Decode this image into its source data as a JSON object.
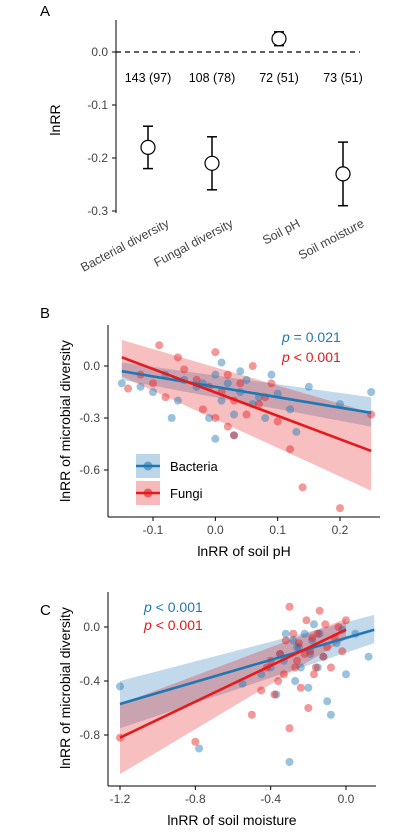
{
  "colors": {
    "bacteria": "#1f78b4",
    "fungi": "#e41a1c"
  },
  "chart_data": [
    {
      "panel": "A",
      "type": "scatter",
      "ylabel": "lnRR",
      "ylim": [
        -0.3,
        0.0
      ],
      "yticks": [
        "0.0",
        "-0.1",
        "-0.2",
        "-0.3"
      ],
      "categories": [
        "Bacterial diversity",
        "Fungal diversity",
        "Soil pH",
        "Soil moisture"
      ],
      "values": [
        -0.18,
        -0.21,
        0.025,
        -0.23
      ],
      "ci_low": [
        -0.22,
        -0.26,
        0.012,
        -0.29
      ],
      "ci_high": [
        -0.14,
        -0.16,
        0.038,
        -0.17
      ],
      "sample_labels": [
        "143 (97)",
        "108 (78)",
        "72 (51)",
        "73 (51)"
      ],
      "reference_line": 0.0
    },
    {
      "panel": "B",
      "type": "scatter",
      "xlabel": "lnRR of soil pH",
      "ylabel": "lnRR of microbial diversity",
      "xticks": [
        "-0.1",
        "0.0",
        "0.1",
        "0.2"
      ],
      "yticks": [
        "0.0",
        "-0.3",
        "-0.6"
      ],
      "legend": [
        "Bacteria",
        "Fungi"
      ],
      "stats": [
        {
          "p_symbol": "p",
          "p_text": " = 0.021"
        },
        {
          "p_symbol": "p",
          "p_text": " < 0.001"
        }
      ],
      "series": [
        {
          "name": "Bacteria",
          "fit": [
            [
              -0.15,
              -0.03
            ],
            [
              0.25,
              -0.27
            ]
          ],
          "band_low": [
            -0.08,
            -0.35
          ],
          "band_high": [
            0.02,
            -0.18
          ],
          "points": [
            [
              -0.15,
              -0.1
            ],
            [
              -0.12,
              -0.12
            ],
            [
              -0.1,
              -0.15
            ],
            [
              -0.08,
              -0.05
            ],
            [
              -0.06,
              -0.2
            ],
            [
              -0.05,
              -0.08
            ],
            [
              -0.03,
              -0.12
            ],
            [
              -0.01,
              -0.3
            ],
            [
              0.0,
              -0.05
            ],
            [
              0.0,
              -0.42
            ],
            [
              0.01,
              -0.2
            ],
            [
              0.02,
              -0.1
            ],
            [
              0.03,
              -0.28
            ],
            [
              0.03,
              -0.4
            ],
            [
              0.04,
              -0.15
            ],
            [
              0.05,
              -0.08
            ],
            [
              0.06,
              -0.22
            ],
            [
              0.07,
              -0.18
            ],
            [
              0.08,
              -0.3
            ],
            [
              0.1,
              -0.16
            ],
            [
              0.12,
              -0.25
            ],
            [
              0.13,
              -0.38
            ],
            [
              0.15,
              -0.12
            ],
            [
              0.2,
              -0.22
            ],
            [
              0.25,
              -0.15
            ],
            [
              -0.07,
              -0.3
            ],
            [
              -0.02,
              -0.1
            ],
            [
              0.01,
              0.02
            ],
            [
              0.04,
              -0.03
            ],
            [
              0.09,
              -0.05
            ]
          ]
        },
        {
          "name": "Fungi",
          "fit": [
            [
              -0.15,
              0.05
            ],
            [
              0.25,
              -0.49
            ]
          ],
          "band_low": [
            -0.06,
            -0.72
          ],
          "band_high": [
            0.15,
            -0.27
          ],
          "points": [
            [
              -0.14,
              -0.13
            ],
            [
              -0.12,
              -0.05
            ],
            [
              -0.1,
              -0.1
            ],
            [
              -0.08,
              -0.18
            ],
            [
              -0.06,
              0.05
            ],
            [
              -0.05,
              -0.02
            ],
            [
              -0.03,
              -0.08
            ],
            [
              -0.02,
              -0.25
            ],
            [
              -0.01,
              -0.12
            ],
            [
              0.0,
              0.08
            ],
            [
              0.0,
              -0.3
            ],
            [
              0.01,
              -0.15
            ],
            [
              0.02,
              -0.05
            ],
            [
              0.02,
              -0.35
            ],
            [
              0.03,
              -0.2
            ],
            [
              0.04,
              -0.1
            ],
            [
              0.05,
              -0.28
            ],
            [
              0.06,
              0.0
            ],
            [
              0.07,
              -0.22
            ],
            [
              0.08,
              -0.18
            ],
            [
              0.1,
              -0.32
            ],
            [
              0.12,
              -0.48
            ],
            [
              0.14,
              -0.7
            ],
            [
              0.2,
              -0.82
            ],
            [
              0.25,
              -0.28
            ],
            [
              -0.09,
              0.12
            ],
            [
              0.03,
              -0.4
            ],
            [
              0.09,
              -0.1
            ]
          ]
        }
      ]
    },
    {
      "panel": "C",
      "type": "scatter",
      "xlabel": "lnRR of soil moisture",
      "ylabel": "lnRR of microbial diversity",
      "xticks": [
        "-1.2",
        "-0.8",
        "-0.4",
        "0.0"
      ],
      "yticks": [
        "0.0",
        "-0.4",
        "-0.8"
      ],
      "stats": [
        {
          "p_symbol": "p",
          "p_text": " < 0.001"
        },
        {
          "p_symbol": "p",
          "p_text": " < 0.001"
        }
      ],
      "series": [
        {
          "name": "Bacteria",
          "fit": [
            [
              -1.2,
              -0.57
            ],
            [
              0.15,
              -0.02
            ]
          ],
          "band_low": [
            -0.75,
            -0.12
          ],
          "band_high": [
            -0.4,
            0.09
          ],
          "points": [
            [
              -1.2,
              -0.44
            ],
            [
              -0.78,
              -0.9
            ],
            [
              -0.55,
              -0.42
            ],
            [
              -0.45,
              -0.35
            ],
            [
              -0.4,
              -0.3
            ],
            [
              -0.37,
              -0.5
            ],
            [
              -0.35,
              -0.2
            ],
            [
              -0.33,
              -0.25
            ],
            [
              -0.3,
              -1.0
            ],
            [
              -0.28,
              -0.1
            ],
            [
              -0.27,
              -0.4
            ],
            [
              -0.25,
              -0.15
            ],
            [
              -0.24,
              -0.3
            ],
            [
              -0.22,
              -0.05
            ],
            [
              -0.2,
              -0.45
            ],
            [
              -0.19,
              -0.2
            ],
            [
              -0.18,
              -0.1
            ],
            [
              -0.15,
              -0.3
            ],
            [
              -0.14,
              -0.05
            ],
            [
              -0.12,
              -0.22
            ],
            [
              -0.1,
              -0.55
            ],
            [
              -0.08,
              -0.65
            ],
            [
              -0.05,
              -0.12
            ],
            [
              -0.02,
              -0.02
            ],
            [
              0.0,
              -0.35
            ],
            [
              0.05,
              -0.05
            ],
            [
              0.12,
              -0.22
            ],
            [
              -0.32,
              -0.05
            ],
            [
              -0.26,
              -0.15
            ],
            [
              -0.17,
              0.02
            ]
          ]
        },
        {
          "name": "Fungi",
          "fit": [
            [
              -1.2,
              -0.82
            ],
            [
              0.0,
              -0.02
            ]
          ],
          "band_low": [
            -1.09,
            -0.09
          ],
          "band_high": [
            -0.57,
            0.06
          ],
          "points": [
            [
              -1.2,
              -0.82
            ],
            [
              -0.8,
              -0.85
            ],
            [
              -0.45,
              -0.47
            ],
            [
              -0.42,
              -0.3
            ],
            [
              -0.4,
              -0.25
            ],
            [
              -0.38,
              -0.5
            ],
            [
              -0.35,
              -0.2
            ],
            [
              -0.33,
              -0.35
            ],
            [
              -0.32,
              -0.1
            ],
            [
              -0.3,
              -0.75
            ],
            [
              -0.3,
              0.15
            ],
            [
              -0.28,
              -0.05
            ],
            [
              -0.27,
              -0.3
            ],
            [
              -0.25,
              -0.12
            ],
            [
              -0.24,
              -0.45
            ],
            [
              -0.22,
              -0.2
            ],
            [
              -0.21,
              0.05
            ],
            [
              -0.2,
              -0.6
            ],
            [
              -0.19,
              -0.18
            ],
            [
              -0.18,
              -0.08
            ],
            [
              -0.16,
              -0.3
            ],
            [
              -0.15,
              -0.05
            ],
            [
              -0.14,
              0.12
            ],
            [
              -0.12,
              -0.22
            ],
            [
              -0.1,
              -0.15
            ],
            [
              -0.08,
              -0.3
            ],
            [
              -0.06,
              -0.08
            ],
            [
              -0.04,
              0.0
            ],
            [
              -0.02,
              -0.18
            ],
            [
              0.0,
              0.05
            ],
            [
              -0.5,
              -0.65
            ],
            [
              -0.36,
              -0.4
            ],
            [
              -0.26,
              -0.25
            ],
            [
              -0.17,
              -0.35
            ],
            [
              -0.11,
              0.02
            ]
          ]
        }
      ]
    }
  ]
}
